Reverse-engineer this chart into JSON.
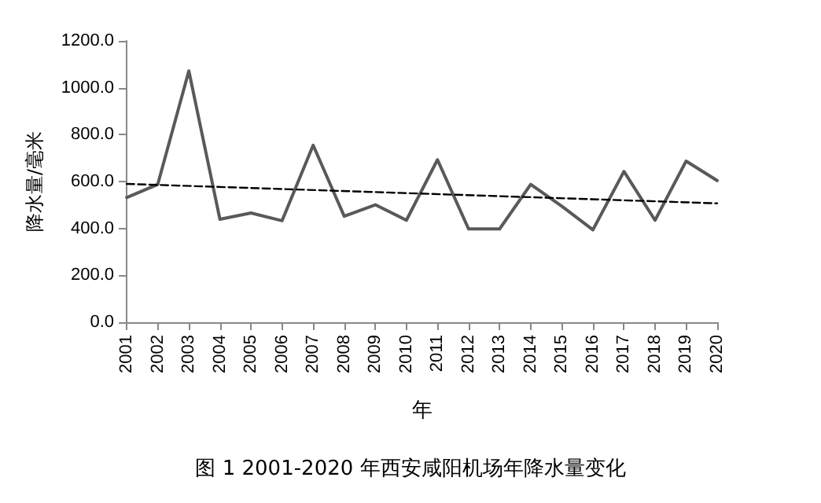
{
  "chart_data": {
    "type": "line",
    "title": "图 1 2001-2020 年西安咸阳机场年降水量变化",
    "xlabel": "年",
    "ylabel": "降水量/毫米",
    "categories": [
      "2001",
      "2002",
      "2003",
      "2004",
      "2005",
      "2006",
      "2007",
      "2008",
      "2009",
      "2010",
      "2011",
      "2012",
      "2013",
      "2014",
      "2015",
      "2016",
      "2017",
      "2018",
      "2019",
      "2020"
    ],
    "series": [
      {
        "color": "#595959",
        "values": [
          532,
          588,
          1072,
          439,
          466,
          433,
          755,
          452,
          501,
          435,
          693,
          398,
          398,
          588,
          495,
          394,
          643,
          435,
          687,
          604
        ]
      },
      {
        "type": "line",
        "color": "#000000",
        "line_style": "dashed",
        "values": [
          590,
          null,
          null,
          null,
          null,
          null,
          null,
          null,
          null,
          null,
          null,
          null,
          null,
          null,
          null,
          null,
          null,
          null,
          null,
          507
        ]
      }
    ],
    "ylim": [
      0,
      1200
    ],
    "yticks": [
      {
        "value": 0,
        "label": "0.0"
      },
      {
        "value": 200,
        "label": "200.0"
      },
      {
        "value": 400,
        "label": "400.0"
      },
      {
        "value": 600,
        "label": "600.0"
      },
      {
        "value": 800,
        "label": "800.0"
      },
      {
        "value": 1000,
        "label": "1000.0"
      },
      {
        "value": 1200,
        "label": "1200.0"
      }
    ],
    "grid": false,
    "marker": "none",
    "line_style": "solid"
  }
}
